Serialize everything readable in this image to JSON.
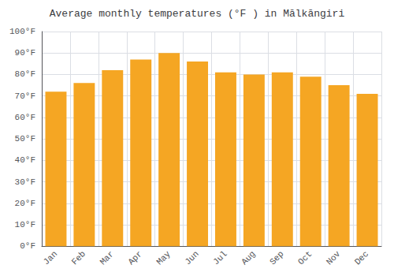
{
  "chart_data": {
    "type": "bar",
    "title": "Average monthly temperatures (°F ) in Mālkāngiri",
    "categories": [
      "Jan",
      "Feb",
      "Mar",
      "Apr",
      "May",
      "Jun",
      "Jul",
      "Aug",
      "Sep",
      "Oct",
      "Nov",
      "Dec"
    ],
    "values": [
      72,
      76,
      82,
      87,
      90,
      86,
      81,
      80,
      81,
      79,
      75,
      71
    ],
    "color": "#F5A623",
    "ylim": [
      0,
      100
    ],
    "yticks": [
      {
        "value": 0,
        "label": "0°F"
      },
      {
        "value": 10,
        "label": "10°F"
      },
      {
        "value": 20,
        "label": "20°F"
      },
      {
        "value": 30,
        "label": "30°F"
      },
      {
        "value": 40,
        "label": "40°F"
      },
      {
        "value": 50,
        "label": "50°F"
      },
      {
        "value": 60,
        "label": "60°F"
      },
      {
        "value": 70,
        "label": "70°F"
      },
      {
        "value": 80,
        "label": "80°F"
      },
      {
        "value": 90,
        "label": "90°F"
      },
      {
        "value": 100,
        "label": "100°F"
      }
    ],
    "grid": true
  }
}
